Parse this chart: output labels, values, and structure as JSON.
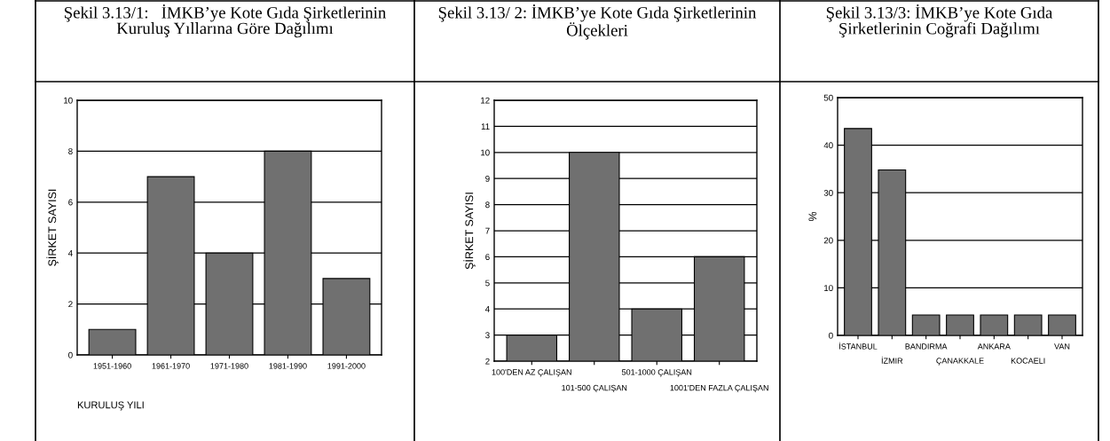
{
  "chart_data": [
    {
      "type": "bar",
      "title": "Şekil 3.13/1:   İMKB’ye Kote Gıda Şirketlerinin Kuruluş Yıllarına Göre Dağılımı",
      "xlabel": "KURULUŞ YILI",
      "ylabel": "ŞİRKET SAYISI",
      "categories": [
        "1951-1960",
        "1961-1970",
        "1971-1980",
        "1981-1990",
        "1991-2000"
      ],
      "values": [
        1,
        7,
        4,
        8,
        3
      ],
      "color": "#707070",
      "ylim": [
        0,
        10
      ],
      "yticks": [
        0,
        2,
        4,
        6,
        8,
        10
      ],
      "grid": "y"
    },
    {
      "type": "bar",
      "title": "Şekil 3.13/ 2: İMKB’ye Kote Gıda Şirketlerinin Ölçekleri",
      "ylabel": "ŞİRKET SAYISI",
      "categories": [
        "100'DEN AZ ÇALIŞAN",
        "101-500 ÇALIŞAN",
        "501-1000 ÇALIŞAN",
        "1001'DEN FAZLA ÇALIŞAN"
      ],
      "values": [
        3,
        10,
        4,
        6
      ],
      "color": "#707070",
      "ylim": [
        2,
        12
      ],
      "yticks": [
        2,
        3,
        4,
        5,
        6,
        7,
        8,
        9,
        10,
        11,
        12
      ],
      "grid": "y"
    },
    {
      "type": "bar",
      "title": "Şekil 3.13/3: İMKB’ye Kote Gıda Şirketlerinin Coğrafi Dağılımı",
      "ylabel": "%",
      "categories": [
        "İSTANBUL",
        "İZMIR",
        "BANDIRMA",
        "ÇANAKKALE",
        "ANKARA",
        "KOCAELI",
        "VAN"
      ],
      "values": [
        43.5,
        34.8,
        4.3,
        4.3,
        4.3,
        4.3,
        4.3
      ],
      "color": "#707070",
      "ylim": [
        0,
        50
      ],
      "yticks": [
        0,
        10,
        20,
        30,
        40,
        50
      ],
      "grid": "y"
    }
  ]
}
